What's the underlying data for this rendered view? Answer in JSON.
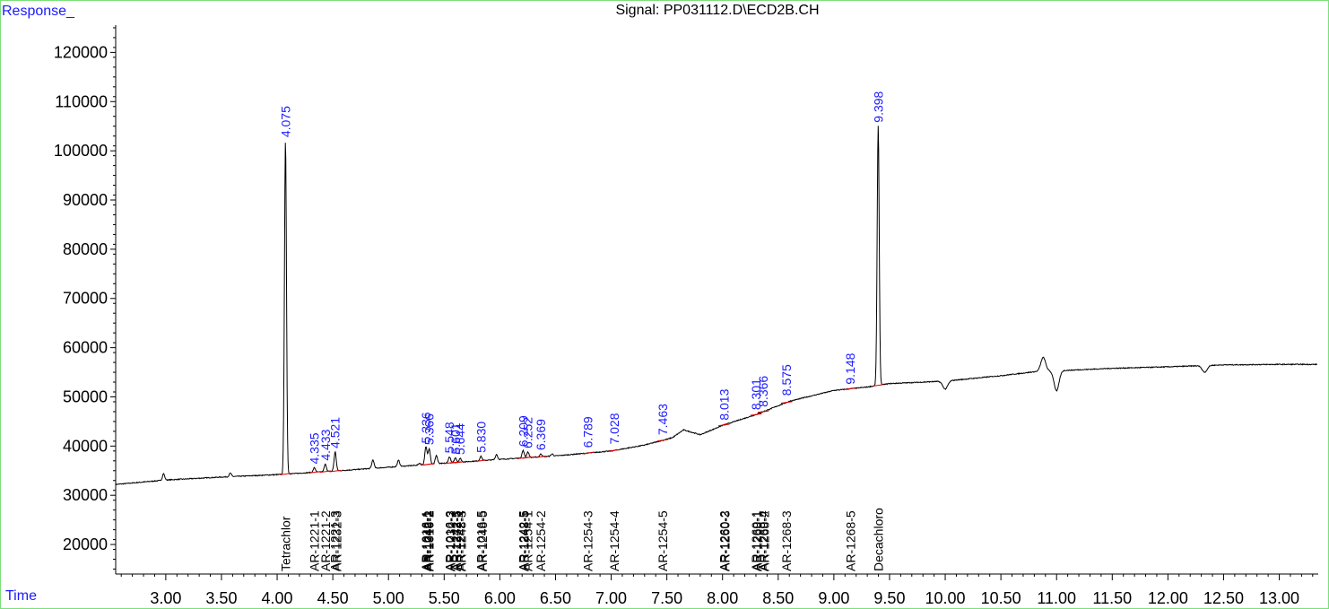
{
  "header": {
    "y_axis_label": "Response_",
    "x_axis_label": "Time",
    "title": "Signal: PP031112.D\\ECD2B.CH"
  },
  "colors": {
    "frame": "#7de07d",
    "label_blue": "#1a1aff",
    "trace": "#000000",
    "baseline_marks": "#e00000"
  },
  "chart_data": {
    "type": "line",
    "title": "Signal: PP031112.D\\ECD2B.CH",
    "xlabel": "Time",
    "ylabel": "Response_",
    "xlim": [
      2.55,
      13.35
    ],
    "ylim": [
      14000,
      127000
    ],
    "grid": false,
    "x_ticks": [
      "3.00",
      "3.50",
      "4.00",
      "4.50",
      "5.00",
      "5.50",
      "6.00",
      "6.50",
      "7.00",
      "7.50",
      "8.00",
      "8.50",
      "9.00",
      "9.50",
      "10.00",
      "10.50",
      "11.00",
      "11.50",
      "12.00",
      "12.50",
      "13.00"
    ],
    "y_ticks": [
      "20000",
      "30000",
      "40000",
      "50000",
      "60000",
      "70000",
      "80000",
      "90000",
      "100000",
      "110000",
      "120000"
    ],
    "peak_labels": [
      {
        "x": 4.075,
        "text": "4.075",
        "y": 102000
      },
      {
        "x": 4.335,
        "text": "4.335",
        "y": 35600
      },
      {
        "x": 4.433,
        "text": "4.433",
        "y": 36300
      },
      {
        "x": 4.521,
        "text": "4.521",
        "y": 38800
      },
      {
        "x": 5.336,
        "text": "5.336",
        "y": 39800
      },
      {
        "x": 5.366,
        "text": "5.366",
        "y": 39500
      },
      {
        "x": 5.548,
        "text": "5.548",
        "y": 37800
      },
      {
        "x": 5.601,
        "text": "5.601",
        "y": 37600
      },
      {
        "x": 5.644,
        "text": "5.644",
        "y": 37500
      },
      {
        "x": 5.83,
        "text": "5.830",
        "y": 37900
      },
      {
        "x": 6.209,
        "text": "6.209",
        "y": 39100
      },
      {
        "x": 6.252,
        "text": "6.252",
        "y": 38800
      },
      {
        "x": 6.369,
        "text": "6.369",
        "y": 38400
      },
      {
        "x": 6.789,
        "text": "6.789",
        "y": 38900
      },
      {
        "x": 7.028,
        "text": "7.028",
        "y": 39600
      },
      {
        "x": 7.463,
        "text": "7.463",
        "y": 41500
      },
      {
        "x": 8.013,
        "text": "8.013",
        "y": 44500
      },
      {
        "x": 8.301,
        "text": "8.301",
        "y": 46600
      },
      {
        "x": 8.366,
        "text": "8.366",
        "y": 47200
      },
      {
        "x": 8.575,
        "text": "8.575",
        "y": 49500
      },
      {
        "x": 9.148,
        "text": "9.148",
        "y": 51800
      },
      {
        "x": 9.398,
        "text": "9.398",
        "y": 105000
      }
    ],
    "compound_labels": [
      {
        "x": 4.075,
        "text": "Tetrachlor"
      },
      {
        "x": 4.335,
        "text": "AR-1221-1"
      },
      {
        "x": 4.433,
        "text": "AR-1221-2"
      },
      {
        "x": 4.521,
        "text": "AR-1221-3"
      },
      {
        "x": 4.535,
        "text": "AR-1232-3"
      },
      {
        "x": 5.336,
        "text": "AR-1016-1"
      },
      {
        "x": 5.346,
        "text": "AR-1242-1"
      },
      {
        "x": 5.356,
        "text": "AR-1248-2"
      },
      {
        "x": 5.366,
        "text": "AR-1016-2"
      },
      {
        "x": 5.548,
        "text": "AR-1016-3"
      },
      {
        "x": 5.56,
        "text": "AR-1232-2"
      },
      {
        "x": 5.601,
        "text": "AR-1242-3"
      },
      {
        "x": 5.612,
        "text": "AR-1232-5"
      },
      {
        "x": 5.644,
        "text": "AR-1242-4"
      },
      {
        "x": 5.656,
        "text": "AR-1248-3"
      },
      {
        "x": 5.83,
        "text": "AR-1016-5"
      },
      {
        "x": 5.842,
        "text": "AR-1248-5"
      },
      {
        "x": 6.209,
        "text": "AR-1242-5"
      },
      {
        "x": 6.22,
        "text": "AR-1248-5"
      },
      {
        "x": 6.252,
        "text": "AR-1254-1"
      },
      {
        "x": 6.369,
        "text": "AR-1254-2"
      },
      {
        "x": 6.789,
        "text": "AR-1254-3"
      },
      {
        "x": 7.028,
        "text": "AR-1254-4"
      },
      {
        "x": 7.463,
        "text": "AR-1254-5"
      },
      {
        "x": 8.013,
        "text": "AR-1260-2"
      },
      {
        "x": 8.024,
        "text": "AR-1260-3"
      },
      {
        "x": 8.301,
        "text": "AR-1260-1"
      },
      {
        "x": 8.312,
        "text": "AR-1268-1"
      },
      {
        "x": 8.366,
        "text": "AR-1260-4"
      },
      {
        "x": 8.377,
        "text": "AR-1268-2"
      },
      {
        "x": 8.575,
        "text": "AR-1268-3"
      },
      {
        "x": 9.148,
        "text": "AR-1268-5"
      },
      {
        "x": 9.398,
        "text": "Decachloro"
      }
    ],
    "baseline": [
      [
        2.55,
        32200
      ],
      [
        3.0,
        33100
      ],
      [
        3.5,
        33700
      ],
      [
        4.0,
        34200
      ],
      [
        4.5,
        34900
      ],
      [
        5.0,
        35700
      ],
      [
        5.5,
        36500
      ],
      [
        6.0,
        37300
      ],
      [
        6.5,
        38000
      ],
      [
        7.0,
        39000
      ],
      [
        7.3,
        40200
      ],
      [
        7.55,
        41700
      ],
      [
        7.65,
        43300
      ],
      [
        7.8,
        42300
      ],
      [
        8.0,
        44200
      ],
      [
        8.3,
        46400
      ],
      [
        8.6,
        49100
      ],
      [
        9.0,
        51300
      ],
      [
        9.3,
        52000
      ],
      [
        9.5,
        52700
      ],
      [
        10.0,
        53200
      ],
      [
        10.5,
        54300
      ],
      [
        10.8,
        55100
      ],
      [
        11.2,
        55500
      ],
      [
        11.5,
        55800
      ],
      [
        12.0,
        56100
      ],
      [
        12.5,
        56500
      ],
      [
        13.0,
        56600
      ],
      [
        13.35,
        56600
      ]
    ],
    "peaks": [
      {
        "x": 2.98,
        "y": 34400
      },
      {
        "x": 3.58,
        "y": 34500
      },
      {
        "x": 4.075,
        "y": 102000
      },
      {
        "x": 4.335,
        "y": 35600
      },
      {
        "x": 4.433,
        "y": 36300
      },
      {
        "x": 4.521,
        "y": 38800
      },
      {
        "x": 4.86,
        "y": 37200
      },
      {
        "x": 5.09,
        "y": 37100
      },
      {
        "x": 5.28,
        "y": 36500
      },
      {
        "x": 5.336,
        "y": 39800
      },
      {
        "x": 5.366,
        "y": 39500
      },
      {
        "x": 5.43,
        "y": 38100
      },
      {
        "x": 5.548,
        "y": 37800
      },
      {
        "x": 5.601,
        "y": 37600
      },
      {
        "x": 5.644,
        "y": 37500
      },
      {
        "x": 5.83,
        "y": 37900
      },
      {
        "x": 5.97,
        "y": 38300
      },
      {
        "x": 6.209,
        "y": 39100
      },
      {
        "x": 6.252,
        "y": 38800
      },
      {
        "x": 6.369,
        "y": 38400
      },
      {
        "x": 6.47,
        "y": 38400
      },
      {
        "x": 9.398,
        "y": 105000
      }
    ],
    "disturbances": [
      {
        "x": 10.0,
        "y": 51600
      },
      {
        "x": 10.88,
        "y": 58000
      },
      {
        "x": 11.0,
        "y": 51200
      },
      {
        "x": 12.33,
        "y": 55000
      }
    ]
  }
}
